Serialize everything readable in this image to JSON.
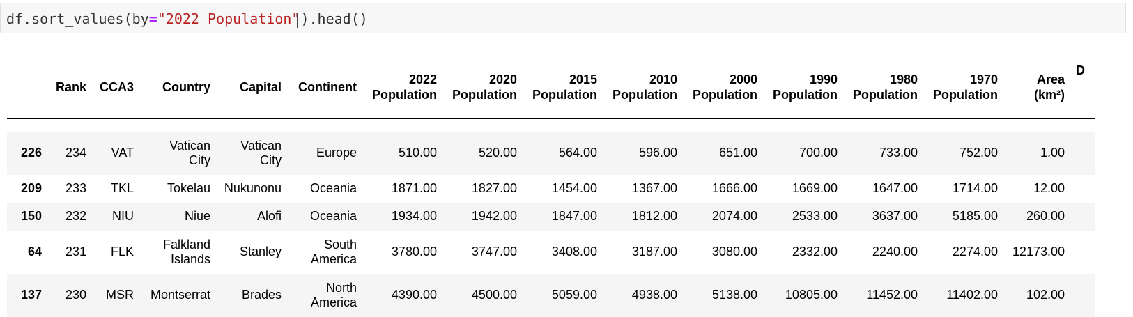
{
  "code_cell": {
    "prefix": "df.sort_values(by",
    "equals": "=",
    "string": "\"2022 Population\"",
    "suffix": ").head()"
  },
  "table": {
    "headers": {
      "index": "",
      "rank": "Rank",
      "cca3": "CCA3",
      "country": "Country",
      "capital": "Capital",
      "continent": "Continent",
      "pop_2022_1": "2022",
      "pop_2022_2": "Population",
      "pop_2020_1": "2020",
      "pop_2020_2": "Population",
      "pop_2015_1": "2015",
      "pop_2015_2": "Population",
      "pop_2010_1": "2010",
      "pop_2010_2": "Population",
      "pop_2000_1": "2000",
      "pop_2000_2": "Population",
      "pop_1990_1": "1990",
      "pop_1990_2": "Population",
      "pop_1980_1": "1980",
      "pop_1980_2": "Population",
      "pop_1970_1": "1970",
      "pop_1970_2": "Population",
      "area_1": "Area",
      "area_2": "(km²)",
      "extra": "D"
    },
    "rows": [
      {
        "index": "226",
        "rank": "234",
        "cca3": "VAT",
        "country_1": "Vatican",
        "country_2": "City",
        "capital_1": "Vatican",
        "capital_2": "City",
        "continent_1": "Europe",
        "continent_2": "",
        "p2022": "510.00",
        "p2020": "520.00",
        "p2015": "564.00",
        "p2010": "596.00",
        "p2000": "651.00",
        "p1990": "700.00",
        "p1980": "733.00",
        "p1970": "752.00",
        "area": "1.00"
      },
      {
        "index": "209",
        "rank": "233",
        "cca3": "TKL",
        "country_1": "Tokelau",
        "country_2": "",
        "capital_1": "Nukunonu",
        "capital_2": "",
        "continent_1": "Oceania",
        "continent_2": "",
        "p2022": "1871.00",
        "p2020": "1827.00",
        "p2015": "1454.00",
        "p2010": "1367.00",
        "p2000": "1666.00",
        "p1990": "1669.00",
        "p1980": "1647.00",
        "p1970": "1714.00",
        "area": "12.00"
      },
      {
        "index": "150",
        "rank": "232",
        "cca3": "NIU",
        "country_1": "Niue",
        "country_2": "",
        "capital_1": "Alofi",
        "capital_2": "",
        "continent_1": "Oceania",
        "continent_2": "",
        "p2022": "1934.00",
        "p2020": "1942.00",
        "p2015": "1847.00",
        "p2010": "1812.00",
        "p2000": "2074.00",
        "p1990": "2533.00",
        "p1980": "3637.00",
        "p1970": "5185.00",
        "area": "260.00"
      },
      {
        "index": "64",
        "rank": "231",
        "cca3": "FLK",
        "country_1": "Falkland",
        "country_2": "Islands",
        "capital_1": "Stanley",
        "capital_2": "",
        "continent_1": "South",
        "continent_2": "America",
        "p2022": "3780.00",
        "p2020": "3747.00",
        "p2015": "3408.00",
        "p2010": "3187.00",
        "p2000": "3080.00",
        "p1990": "2332.00",
        "p1980": "2240.00",
        "p1970": "2274.00",
        "area": "12173.00"
      },
      {
        "index": "137",
        "rank": "230",
        "cca3": "MSR",
        "country_1": "Montserrat",
        "country_2": "",
        "capital_1": "Brades",
        "capital_2": "",
        "continent_1": "North",
        "continent_2": "America",
        "p2022": "4390.00",
        "p2020": "4500.00",
        "p2015": "5059.00",
        "p2010": "4938.00",
        "p2000": "5138.00",
        "p1990": "10805.00",
        "p1980": "11452.00",
        "p1970": "11402.00",
        "area": "102.00"
      }
    ]
  }
}
